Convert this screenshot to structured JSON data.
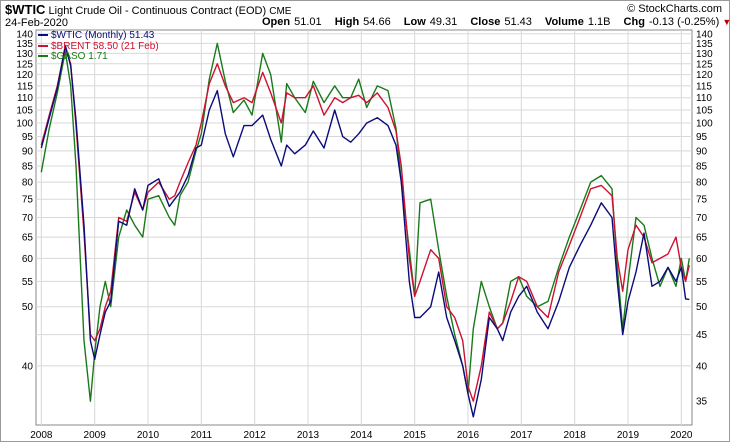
{
  "header": {
    "symbol": "$WTIC",
    "description": "Light Crude Oil - Continuous Contract (EOD)",
    "exchange": "CME",
    "date": "24-Feb-2020",
    "brand": "© StockCharts.com",
    "open_label": "Open",
    "open": "51.01",
    "high_label": "High",
    "high": "54.66",
    "low_label": "Low",
    "low": "49.31",
    "close_label": "Close",
    "close": "51.43",
    "volume_label": "Volume",
    "volume": "1.1B",
    "chg_label": "Chg",
    "chg": "-0.13 (-0.25%)",
    "chg_arrow": "▼"
  },
  "legend": [
    {
      "text": "$WTIC (Monthly) 51.43",
      "color": "#0b0b7a"
    },
    {
      "text": "$BRENT 58.50 (21 Feb)",
      "color": "#cc1133"
    },
    {
      "text": "$GASO 1.71",
      "color": "#1a7a1a"
    }
  ],
  "chart_data": {
    "type": "line",
    "scale": "log",
    "ylim": [
      32,
      142
    ],
    "x_range": [
      2007.9,
      2020.2
    ],
    "y_ticks": [
      40,
      45,
      50,
      55,
      60,
      65,
      70,
      75,
      80,
      85,
      90,
      95,
      100,
      105,
      110,
      115,
      120,
      125,
      130,
      135,
      140
    ],
    "y_ticks_left": [
      40,
      50,
      55,
      60,
      65,
      70,
      75,
      80,
      85,
      90,
      95,
      100,
      105,
      110,
      115,
      120,
      125,
      130,
      135,
      140
    ],
    "y_ticks_right": [
      35,
      40,
      45,
      50,
      55,
      60,
      65,
      70,
      75,
      80,
      85,
      90,
      95,
      100,
      105,
      110,
      115,
      120,
      125,
      130,
      135,
      140
    ],
    "x_ticks": [
      "2008",
      "2009",
      "2010",
      "2011",
      "2012",
      "2013",
      "2014",
      "2015",
      "2016",
      "2017",
      "2018",
      "2019",
      "2020"
    ],
    "grid": true,
    "series": [
      {
        "name": "$WTIC (Monthly) 51.43",
        "color": "#0b0b7a",
        "x": [
          2008.0,
          2008.15,
          2008.3,
          2008.45,
          2008.55,
          2008.65,
          2008.8,
          2008.92,
          2009.0,
          2009.1,
          2009.2,
          2009.3,
          2009.45,
          2009.6,
          2009.75,
          2009.9,
          2010.0,
          2010.2,
          2010.4,
          2010.5,
          2010.6,
          2010.75,
          2010.9,
          2011.0,
          2011.15,
          2011.3,
          2011.45,
          2011.6,
          2011.8,
          2011.95,
          2012.15,
          2012.3,
          2012.5,
          2012.6,
          2012.75,
          2012.95,
          2013.1,
          2013.3,
          2013.5,
          2013.65,
          2013.8,
          2013.95,
          2014.1,
          2014.3,
          2014.5,
          2014.65,
          2014.75,
          2014.9,
          2015.0,
          2015.1,
          2015.3,
          2015.45,
          2015.6,
          2015.75,
          2015.9,
          2016.0,
          2016.1,
          2016.25,
          2016.4,
          2016.55,
          2016.65,
          2016.8,
          2016.95,
          2017.1,
          2017.3,
          2017.5,
          2017.7,
          2017.9,
          2018.1,
          2018.3,
          2018.5,
          2018.7,
          2018.8,
          2018.9,
          2019.0,
          2019.15,
          2019.3,
          2019.45,
          2019.6,
          2019.75,
          2019.9,
          2020.0,
          2020.08,
          2020.15
        ],
        "values": [
          91,
          102,
          114,
          134,
          124,
          101,
          68,
          44,
          41,
          45,
          49,
          51,
          69,
          68,
          78,
          72,
          79,
          81,
          73,
          75,
          77,
          82,
          91,
          92,
          105,
          113,
          96,
          88,
          99,
          99,
          103,
          94,
          85,
          92,
          89,
          92,
          97,
          91,
          105,
          95,
          93,
          96,
          100,
          102,
          99,
          92,
          80,
          55,
          48,
          48,
          50,
          57,
          48,
          44,
          40,
          36,
          33,
          38,
          48,
          46,
          44,
          49,
          52,
          54,
          49,
          46,
          51,
          58,
          63,
          68,
          74,
          70,
          55,
          45,
          51,
          57,
          66,
          54,
          55,
          58,
          55,
          58,
          51.5,
          51.4
        ]
      },
      {
        "name": "$BRENT 58.50 (21 Feb)",
        "color": "#cc1133",
        "x": [
          2008.0,
          2008.15,
          2008.3,
          2008.45,
          2008.55,
          2008.65,
          2008.8,
          2008.92,
          2009.0,
          2009.1,
          2009.2,
          2009.3,
          2009.45,
          2009.6,
          2009.75,
          2009.9,
          2010.0,
          2010.2,
          2010.4,
          2010.5,
          2010.6,
          2010.75,
          2010.9,
          2011.0,
          2011.15,
          2011.3,
          2011.45,
          2011.6,
          2011.8,
          2011.95,
          2012.15,
          2012.3,
          2012.5,
          2012.6,
          2012.75,
          2012.95,
          2013.1,
          2013.3,
          2013.5,
          2013.65,
          2013.8,
          2013.95,
          2014.1,
          2014.3,
          2014.5,
          2014.65,
          2014.75,
          2014.9,
          2015.0,
          2015.1,
          2015.3,
          2015.45,
          2015.6,
          2015.75,
          2015.9,
          2016.0,
          2016.1,
          2016.25,
          2016.4,
          2016.55,
          2016.65,
          2016.8,
          2016.95,
          2017.1,
          2017.3,
          2017.5,
          2017.7,
          2017.9,
          2018.1,
          2018.3,
          2018.5,
          2018.7,
          2018.8,
          2018.9,
          2019.0,
          2019.15,
          2019.3,
          2019.45,
          2019.6,
          2019.75,
          2019.9,
          2020.0,
          2020.08,
          2020.15
        ],
        "values": [
          92,
          103,
          115,
          133,
          125,
          99,
          66,
          45,
          44,
          46,
          50,
          53,
          70,
          69,
          77,
          72,
          77,
          80,
          75,
          76,
          80,
          86,
          92,
          100,
          116,
          125,
          115,
          108,
          110,
          108,
          121,
          112,
          100,
          112,
          110,
          110,
          115,
          103,
          110,
          108,
          110,
          111,
          108,
          112,
          106,
          97,
          85,
          60,
          52,
          55,
          62,
          60,
          50,
          48,
          44,
          37,
          35,
          40,
          49,
          46,
          47,
          51,
          56,
          55,
          50,
          48,
          57,
          63,
          70,
          78,
          79,
          76,
          60,
          53,
          62,
          68,
          65,
          59,
          60,
          61,
          65,
          58,
          55,
          58.5
        ]
      },
      {
        "name": "$GASO 1.71",
        "color": "#1a7a1a",
        "x": [
          2008.0,
          2008.15,
          2008.3,
          2008.45,
          2008.55,
          2008.65,
          2008.8,
          2008.92,
          2009.0,
          2009.1,
          2009.2,
          2009.3,
          2009.45,
          2009.6,
          2009.75,
          2009.9,
          2010.0,
          2010.2,
          2010.4,
          2010.5,
          2010.6,
          2010.75,
          2010.9,
          2011.0,
          2011.15,
          2011.3,
          2011.45,
          2011.6,
          2011.8,
          2011.95,
          2012.15,
          2012.3,
          2012.5,
          2012.6,
          2012.75,
          2012.95,
          2013.1,
          2013.3,
          2013.5,
          2013.65,
          2013.8,
          2013.95,
          2014.1,
          2014.3,
          2014.5,
          2014.65,
          2014.75,
          2014.9,
          2015.0,
          2015.1,
          2015.3,
          2015.45,
          2015.6,
          2015.75,
          2015.9,
          2016.0,
          2016.1,
          2016.25,
          2016.4,
          2016.55,
          2016.65,
          2016.8,
          2016.95,
          2017.1,
          2017.3,
          2017.5,
          2017.7,
          2017.9,
          2018.1,
          2018.3,
          2018.5,
          2018.7,
          2018.8,
          2018.9,
          2019.0,
          2019.15,
          2019.3,
          2019.45,
          2019.6,
          2019.75,
          2019.9,
          2020.0,
          2020.08,
          2020.15
        ],
        "values": [
          83,
          98,
          112,
          131,
          115,
          85,
          44,
          35,
          42,
          50,
          55,
          50,
          65,
          72,
          68,
          65,
          75,
          76,
          70,
          68,
          76,
          80,
          90,
          96,
          118,
          135,
          117,
          104,
          109,
          103,
          130,
          120,
          93,
          116,
          110,
          104,
          117,
          108,
          115,
          110,
          110,
          118,
          106,
          115,
          113,
          98,
          80,
          62,
          52,
          74,
          75,
          62,
          52,
          45,
          40,
          36,
          46,
          55,
          50,
          46,
          47,
          55,
          56,
          52,
          50,
          51,
          58,
          65,
          72,
          80,
          82,
          78,
          58,
          46,
          55,
          70,
          68,
          60,
          54,
          58,
          54,
          60,
          55,
          60
        ]
      }
    ]
  }
}
